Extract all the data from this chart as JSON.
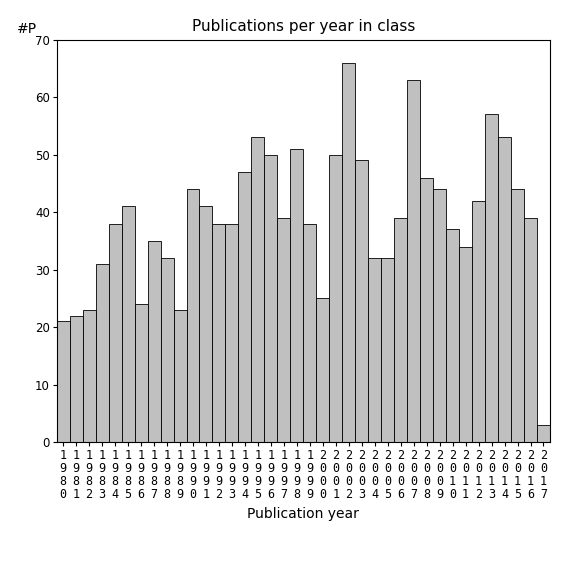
{
  "title": "Publications per year in class",
  "xlabel": "Publication year",
  "ylabel": "#P",
  "years": [
    1980,
    1981,
    1982,
    1983,
    1984,
    1985,
    1986,
    1987,
    1988,
    1989,
    1990,
    1991,
    1992,
    1993,
    1994,
    1995,
    1996,
    1997,
    1998,
    1999,
    2000,
    2001,
    2002,
    2003,
    2004,
    2005,
    2006,
    2007,
    2008,
    2009,
    2010,
    2011,
    2012,
    2013,
    2014,
    2015,
    2016,
    2017
  ],
  "values": [
    21,
    22,
    23,
    31,
    38,
    41,
    24,
    35,
    32,
    23,
    44,
    41,
    38,
    38,
    47,
    53,
    50,
    39,
    51,
    38,
    25,
    50,
    66,
    49,
    32,
    32,
    39,
    63,
    46,
    44,
    37,
    34,
    42,
    57,
    53,
    44,
    39,
    3
  ],
  "bar_color": "#c0c0c0",
  "bar_edge_color": "#000000",
  "ylim": [
    0,
    70
  ],
  "yticks": [
    0,
    10,
    20,
    30,
    40,
    50,
    60,
    70
  ],
  "bg_color": "#ffffff",
  "title_fontsize": 11,
  "axis_label_fontsize": 10,
  "tick_fontsize": 8.5
}
